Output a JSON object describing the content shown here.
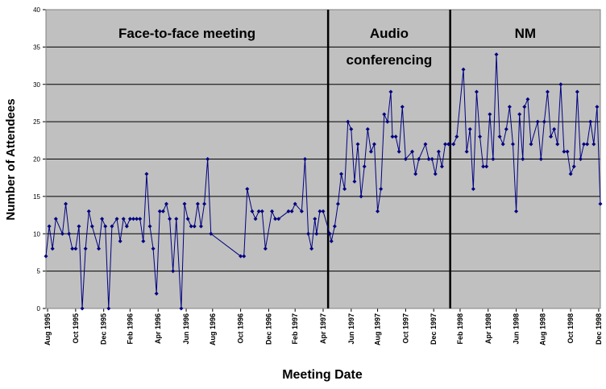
{
  "chart_data": {
    "type": "line",
    "x_label": "Meeting Date",
    "y_label": "Number of Attendees",
    "xlim": [
      1995.57,
      1998.93
    ],
    "xticks": [
      {
        "value": 1995.58,
        "label": "Aug 1995"
      },
      {
        "value": 1995.75,
        "label": "Oct 1995"
      },
      {
        "value": 1995.92,
        "label": "Dec 1995"
      },
      {
        "value": 1996.08,
        "label": "Feb 1996"
      },
      {
        "value": 1996.25,
        "label": "Apr 1996"
      },
      {
        "value": 1996.42,
        "label": "Jun 1996"
      },
      {
        "value": 1996.58,
        "label": "Aug 1996"
      },
      {
        "value": 1996.75,
        "label": "Oct 1996"
      },
      {
        "value": 1996.92,
        "label": "Dec 1996"
      },
      {
        "value": 1997.08,
        "label": "Feb 1997"
      },
      {
        "value": 1997.25,
        "label": "Apr 1997"
      },
      {
        "value": 1997.42,
        "label": "Jun 1997"
      },
      {
        "value": 1997.58,
        "label": "Aug 1997"
      },
      {
        "value": 1997.75,
        "label": "Oct 1997"
      },
      {
        "value": 1997.92,
        "label": "Dec 1997"
      },
      {
        "value": 1998.08,
        "label": "Feb 1998"
      },
      {
        "value": 1998.25,
        "label": "Apr 1998"
      },
      {
        "value": 1998.42,
        "label": "Jun 1998"
      },
      {
        "value": 1998.58,
        "label": "Aug 1998"
      },
      {
        "value": 1998.75,
        "label": "Oct 1998"
      },
      {
        "value": 1998.92,
        "label": "Dec 1998"
      }
    ],
    "ylim": [
      0,
      40
    ],
    "yticks": [
      0,
      5,
      10,
      15,
      20,
      25,
      30,
      35,
      40
    ],
    "grid": true,
    "dividers": [
      1997.28,
      1998.02
    ],
    "annotations": [
      [
        "Face-to-face meeting"
      ],
      [
        "Audio",
        "conferencing"
      ],
      [
        "NM"
      ]
    ],
    "series": [
      {
        "color": "#000080",
        "x": [
          1995.57,
          1995.59,
          1995.61,
          1995.63,
          1995.67,
          1995.69,
          1995.71,
          1995.73,
          1995.75,
          1995.77,
          1995.79,
          1995.81,
          1995.83,
          1995.85,
          1995.89,
          1995.91,
          1995.93,
          1995.95,
          1995.97,
          1996.0,
          1996.02,
          1996.04,
          1996.06,
          1996.08,
          1996.1,
          1996.12,
          1996.14,
          1996.16,
          1996.18,
          1996.2,
          1996.22,
          1996.24,
          1996.26,
          1996.28,
          1996.3,
          1996.32,
          1996.34,
          1996.36,
          1996.39,
          1996.41,
          1996.43,
          1996.45,
          1996.47,
          1996.49,
          1996.51,
          1996.53,
          1996.55,
          1996.57,
          1996.75,
          1996.77,
          1996.79,
          1996.82,
          1996.84,
          1996.86,
          1996.88,
          1996.9,
          1996.94,
          1996.96,
          1996.98,
          1997.04,
          1997.06,
          1997.08,
          1997.12,
          1997.14,
          1997.16,
          1997.18,
          1997.2,
          1997.21,
          1997.23,
          1997.25,
          1997.29,
          1997.3,
          1997.32,
          1997.34,
          1997.36,
          1997.38,
          1997.4,
          1997.42,
          1997.44,
          1997.46,
          1997.48,
          1997.5,
          1997.52,
          1997.54,
          1997.56,
          1997.58,
          1997.6,
          1997.62,
          1997.64,
          1997.66,
          1997.67,
          1997.69,
          1997.71,
          1997.73,
          1997.75,
          1997.79,
          1997.81,
          1997.83,
          1997.87,
          1997.89,
          1997.91,
          1997.93,
          1997.95,
          1997.97,
          1997.99,
          1998.01,
          1998.04,
          1998.06,
          1998.1,
          1998.12,
          1998.14,
          1998.16,
          1998.18,
          1998.2,
          1998.22,
          1998.24,
          1998.26,
          1998.28,
          1998.3,
          1998.32,
          1998.34,
          1998.36,
          1998.38,
          1998.4,
          1998.42,
          1998.44,
          1998.46,
          1998.47,
          1998.49,
          1998.51,
          1998.55,
          1998.57,
          1998.59,
          1998.61,
          1998.63,
          1998.65,
          1998.67,
          1998.69,
          1998.71,
          1998.73,
          1998.75,
          1998.77,
          1998.79,
          1998.81,
          1998.83,
          1998.85,
          1998.87,
          1998.89,
          1998.91,
          1998.93
        ],
        "values": [
          7,
          11,
          8,
          12,
          10,
          14,
          10,
          8,
          8,
          11,
          0,
          8,
          13,
          11,
          8,
          12,
          11,
          0,
          11,
          12,
          9,
          12,
          11,
          12,
          12,
          12,
          12,
          9,
          18,
          11,
          8,
          2,
          13,
          13,
          14,
          12,
          5,
          12,
          0,
          14,
          12,
          11,
          11,
          14,
          11,
          14,
          20,
          10,
          7,
          7,
          16,
          13,
          12,
          13,
          13,
          8,
          13,
          12,
          12,
          13,
          13,
          14,
          13,
          20,
          10,
          8,
          12,
          10,
          13,
          13,
          10,
          9,
          11,
          14,
          18,
          16,
          25,
          24,
          17,
          22,
          15,
          19,
          24,
          21,
          22,
          13,
          16,
          26,
          25,
          29,
          23,
          23,
          21,
          27,
          20,
          21,
          18,
          20,
          22,
          20,
          20,
          18,
          21,
          19,
          22,
          22,
          22,
          23,
          32,
          21,
          24,
          16,
          29,
          23,
          19,
          19,
          26,
          20,
          34,
          23,
          22,
          24,
          27,
          22,
          13,
          26,
          20,
          27,
          28,
          22,
          25,
          20,
          25,
          29,
          23,
          24,
          22,
          30,
          21,
          21,
          18,
          19,
          29,
          20,
          22,
          22,
          25,
          22,
          27,
          14
        ]
      }
    ]
  }
}
